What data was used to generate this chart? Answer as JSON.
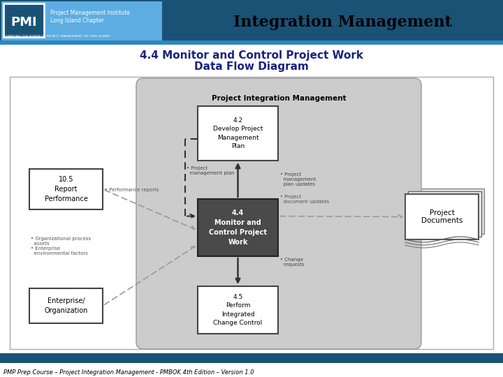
{
  "title": "Integration Management",
  "subtitle1": "4.4 Monitor and Control Project Work",
  "subtitle2": "Data Flow Diagram",
  "footer": "PMP Prep Course – Project Integration Management - PMBOK 4th Edition – Version 1.0",
  "header_bg": "#1a5276",
  "header_stripe": "#2e86c1",
  "header_light": "#5dade2",
  "title_color": "#000000",
  "subtitle_color": "#1a237e",
  "footer_bg": "#1a5276",
  "diagram_bg": "#c8c8c8",
  "main_box_bg": "#4a4a4a",
  "main_box_text": "#ffffff",
  "pim_label": "Project Integration Management",
  "box_44": "4.4\nMonitor and\nControl Project\nWork",
  "box_42": "4.2\nDevelop Project\nManagement\nPlan",
  "box_45": "4.5\nPerform\nIntegrated\nChange Control",
  "box_105": "10.5\nReport\nPerformance",
  "box_ent": "Enterprise/\nOrganization",
  "box_docs": "Project\nDocuments",
  "arrow_pm_plan": "• Project\n  management plan",
  "arrow_pm_updates": "• Project\n  management\n  plan updates",
  "arrow_perf_reports": "• Performance reports",
  "arrow_proj_doc_updates": "• Project\n  document updates",
  "arrow_change_req": "• Change\n  requests",
  "arrow_org_assets": "• Organizational process\n  assets\n• Enterprise\n  environmental factors"
}
